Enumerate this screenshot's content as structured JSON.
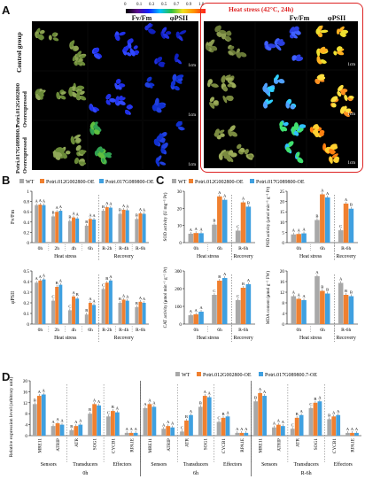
{
  "panel_labels": [
    "A",
    "B",
    "C",
    "D"
  ],
  "panel_a": {
    "colorbar": {
      "ticks": [
        "0",
        "0.1",
        "0.3",
        "0.5",
        "0.7",
        "0.9",
        "1.0"
      ],
      "colors": [
        "#000000",
        "#5b0a8a",
        "#1020ff",
        "#00c0ff",
        "#30c040",
        "#f0e020",
        "#ff9000",
        "#ff2020"
      ]
    },
    "column_labels": [
      "Fv/Fm",
      "φPSII"
    ],
    "heat_box_title": "Heat stress (42°C, 24h)",
    "row_labels": [
      "Control group",
      "Potri.012G002800 Overexpressed",
      "Potri.017G089800.7 Overexpressed"
    ],
    "scalebar": "1cm"
  },
  "legend": {
    "wt": "WT",
    "oe1": "Potri.012G002800-OE",
    "oe2": "Potri.017G089800-OE",
    "oe2_d": "Potri.017G089800.7-OE"
  },
  "colors": {
    "wt": "#a8a8a8",
    "oe1": "#f08030",
    "oe2": "#3fa0e0",
    "heat_box": "#dd2222"
  },
  "chart_data": [
    {
      "id": "B1",
      "type": "bar",
      "ylabel": "Fv/Fm",
      "ylim": [
        0,
        1
      ],
      "yticks": [
        "0",
        "0.2",
        "0.4",
        "0.6",
        "0.8",
        "1"
      ],
      "categories": [
        "0h",
        "2h",
        "4h",
        "6h",
        "R-2h",
        "R-4h",
        "R-6h"
      ],
      "groups": [
        {
          "label": "Heat stress",
          "span": [
            0,
            3
          ]
        },
        {
          "label": "Recovery",
          "span": [
            4,
            6
          ]
        }
      ],
      "series": [
        {
          "name": "WT",
          "values": [
            0.73,
            0.51,
            0.42,
            0.33,
            0.62,
            0.56,
            0.46
          ]
        },
        {
          "name": "Potri.012G002800-OE",
          "values": [
            0.74,
            0.6,
            0.49,
            0.46,
            0.69,
            0.64,
            0.57
          ]
        },
        {
          "name": "Potri.017G089800-OE",
          "values": [
            0.73,
            0.62,
            0.47,
            0.45,
            0.68,
            0.63,
            0.56
          ]
        }
      ],
      "sig": [
        [
          "A",
          "A",
          "A"
        ],
        [
          "B",
          "A",
          "A"
        ],
        [
          "B",
          "A",
          "A"
        ],
        [
          "B",
          "A",
          "A"
        ],
        [
          "B",
          "A",
          "A"
        ],
        [
          "B",
          "A",
          "A"
        ],
        [
          "B",
          "A",
          "A"
        ]
      ]
    },
    {
      "id": "B2",
      "type": "bar",
      "ylabel": "φPSII",
      "ylim": [
        0,
        0.5
      ],
      "yticks": [
        "0",
        "0.1",
        "0.2",
        "0.3",
        "0.4",
        "0.5"
      ],
      "categories": [
        "0h",
        "2h",
        "4h",
        "6h",
        "R-2h",
        "R-4h",
        "R-6h"
      ],
      "groups": [
        {
          "label": "Heat stress",
          "span": [
            0,
            3
          ]
        },
        {
          "label": "Recovery",
          "span": [
            4,
            6
          ]
        }
      ],
      "series": [
        {
          "name": "WT",
          "values": [
            0.39,
            0.22,
            0.13,
            0.09,
            0.33,
            0.2,
            0.16
          ]
        },
        {
          "name": "Potri.012G002800-OE",
          "values": [
            0.41,
            0.35,
            0.26,
            0.2,
            0.39,
            0.23,
            0.21
          ]
        },
        {
          "name": "Potri.017G089800-OE",
          "values": [
            0.42,
            0.37,
            0.24,
            0.18,
            0.41,
            0.22,
            0.2
          ]
        }
      ],
      "sig": [
        [
          "A",
          "A",
          "A"
        ],
        [
          "C",
          "B",
          "A"
        ],
        [
          "C",
          "A",
          "B"
        ],
        [
          "B",
          "A",
          "A"
        ],
        [
          "C",
          "B",
          "A"
        ],
        [
          "B",
          "A",
          "A"
        ],
        [
          "B",
          "A",
          "A"
        ]
      ]
    },
    {
      "id": "C1",
      "type": "bar",
      "ylabel": "SOD activity (U mg⁻¹ Pr)",
      "ylim": [
        0,
        30
      ],
      "yticks": [
        "0",
        "10",
        "20",
        "30"
      ],
      "categories": [
        "0h",
        "6h",
        "R-6h"
      ],
      "groups": [
        {
          "label": "Heat stress",
          "span": [
            0,
            1
          ]
        },
        {
          "label": "Recovery",
          "span": [
            2,
            2
          ]
        }
      ],
      "series": [
        {
          "name": "WT",
          "values": [
            5.2,
            10.5,
            7.0
          ]
        },
        {
          "name": "Potri.012G002800-OE",
          "values": [
            5.6,
            27.0,
            23.5
          ]
        },
        {
          "name": "Potri.017G089800-OE",
          "values": [
            5.5,
            25.0,
            21.0
          ]
        }
      ],
      "sig": [
        [
          "A",
          "A",
          "A"
        ],
        [
          "B",
          "A",
          "A"
        ],
        [
          "C",
          "A",
          "B"
        ]
      ]
    },
    {
      "id": "C2",
      "type": "bar",
      "ylabel": "POD activity (μmol min⁻¹ g⁻¹ Pr)",
      "ylim": [
        0,
        25
      ],
      "yticks": [
        "0",
        "5",
        "10",
        "15",
        "20",
        "25"
      ],
      "categories": [
        "0h",
        "6h",
        "R-6h"
      ],
      "groups": [
        {
          "label": "Heat stress",
          "span": [
            0,
            1
          ]
        },
        {
          "label": "Recovery",
          "span": [
            2,
            2
          ]
        }
      ],
      "series": [
        {
          "name": "WT",
          "values": [
            4.0,
            11.0,
            6.0
          ]
        },
        {
          "name": "Potri.012G002800-OE",
          "values": [
            4.2,
            23.5,
            19.0
          ]
        },
        {
          "name": "Potri.017G089800-OE",
          "values": [
            4.5,
            22.0,
            16.5
          ]
        }
      ],
      "sig": [
        [
          "A",
          "A",
          "A"
        ],
        [
          "B",
          "A",
          "A"
        ],
        [
          "C",
          "A",
          "B"
        ]
      ]
    },
    {
      "id": "C3",
      "type": "bar",
      "ylabel": "CAT activity (μmol min⁻¹ g⁻¹ Pr)",
      "ylim": [
        0,
        300
      ],
      "yticks": [
        "0",
        "100",
        "200",
        "300"
      ],
      "categories": [
        "0h",
        "6h",
        "R-6h"
      ],
      "groups": [
        {
          "label": "Heat stress",
          "span": [
            0,
            1
          ]
        },
        {
          "label": "Recovery",
          "span": [
            2,
            2
          ]
        }
      ],
      "series": [
        {
          "name": "WT",
          "values": [
            50,
            165,
            135
          ]
        },
        {
          "name": "Potri.012G002800-OE",
          "values": [
            55,
            245,
            205
          ]
        },
        {
          "name": "Potri.017G089800-OE",
          "values": [
            70,
            260,
            225
          ]
        }
      ],
      "sig": [
        [
          "A",
          "A",
          "A"
        ],
        [
          "C",
          "B",
          "A"
        ],
        [
          "C",
          "B",
          "A"
        ]
      ]
    },
    {
      "id": "C4",
      "type": "bar",
      "ylabel": "MDA content (μmol g⁻¹ FW)",
      "ylim": [
        0,
        20
      ],
      "yticks": [
        "0",
        "4",
        "8",
        "12",
        "16",
        "20"
      ],
      "categories": [
        "0h",
        "6h",
        "R-6h"
      ],
      "groups": [
        {
          "label": "Heat stress",
          "span": [
            0,
            1
          ]
        },
        {
          "label": "Recovery",
          "span": [
            2,
            2
          ]
        }
      ],
      "series": [
        {
          "name": "WT",
          "values": [
            10.5,
            18.0,
            15.5
          ]
        },
        {
          "name": "Potri.012G002800-OE",
          "values": [
            9.5,
            12.5,
            11.0
          ]
        },
        {
          "name": "Potri.017G089800-OE",
          "values": [
            9.0,
            11.5,
            10.5
          ]
        }
      ],
      "sig": [
        [
          "A",
          "A",
          "A"
        ],
        [
          "A",
          "B",
          "B"
        ],
        [
          "A",
          "B",
          "B"
        ]
      ]
    },
    {
      "id": "D",
      "type": "bar",
      "ylabel": "Relative expression level (arbitrary unit)",
      "ylim": [
        0,
        20
      ],
      "yticks": [
        "0",
        "4",
        "8",
        "12",
        "16",
        "20"
      ],
      "categories": [
        "MRE11",
        "ATRIP",
        "ATR",
        "SOG1",
        "CYCB1",
        "RPA1E",
        "MRE11",
        "ATRIP",
        "ATR",
        "SOG1",
        "CYCB1",
        "RPA1E",
        "MRE11",
        "ATRIP",
        "ATR",
        "SOG1",
        "CYCB1",
        "RPA1E"
      ],
      "subgroups": [
        "Sensors",
        "Transducers",
        "Effectors",
        "Sensors",
        "Transducers",
        "Effectors",
        "Sensors",
        "Transducers",
        "Effectors"
      ],
      "timepoints": [
        "0h",
        "6h",
        "R-6h"
      ],
      "series": [
        {
          "name": "WT",
          "values": [
            11.5,
            3.5,
            2.0,
            8.0,
            7.0,
            1.0,
            10.0,
            2.5,
            1.5,
            10.5,
            5.0,
            1.0,
            12.5,
            3.0,
            2.5,
            10.0,
            6.0,
            1.0
          ]
        },
        {
          "name": "Potri.012G002800-OE",
          "values": [
            14.5,
            4.5,
            3.5,
            11.5,
            9.0,
            1.0,
            11.5,
            3.5,
            5.5,
            14.5,
            6.5,
            1.0,
            15.5,
            4.0,
            6.5,
            12.0,
            7.0,
            1.0
          ]
        },
        {
          "name": "Potri.017G089800.7-OE",
          "values": [
            15.0,
            4.0,
            4.0,
            11.0,
            8.5,
            1.0,
            10.5,
            3.0,
            7.5,
            14.0,
            7.0,
            1.0,
            14.5,
            3.5,
            7.5,
            12.5,
            7.5,
            1.0
          ]
        }
      ],
      "sig": [
        [
          "B",
          "A",
          "A"
        ],
        [
          "A",
          "A",
          "A"
        ],
        [
          "B",
          "A",
          "A"
        ],
        [
          "B",
          "A",
          "A"
        ],
        [
          "C",
          "B",
          "A"
        ],
        [
          "A",
          "A",
          "A"
        ],
        [
          "A",
          "A",
          "A"
        ],
        [
          "A",
          "A",
          "A"
        ],
        [
          "C",
          "B",
          "A"
        ],
        [
          "B",
          "A",
          "A"
        ],
        [
          "C",
          "B",
          "A"
        ],
        [
          "A",
          "A",
          "A"
        ],
        [
          "B",
          "A",
          "A"
        ],
        [
          "A",
          "A",
          "A"
        ],
        [
          "C",
          "B",
          "A"
        ],
        [
          "C",
          "B",
          "A"
        ],
        [
          "B",
          "A",
          "A"
        ],
        [
          "A",
          "A",
          "A"
        ]
      ]
    }
  ]
}
